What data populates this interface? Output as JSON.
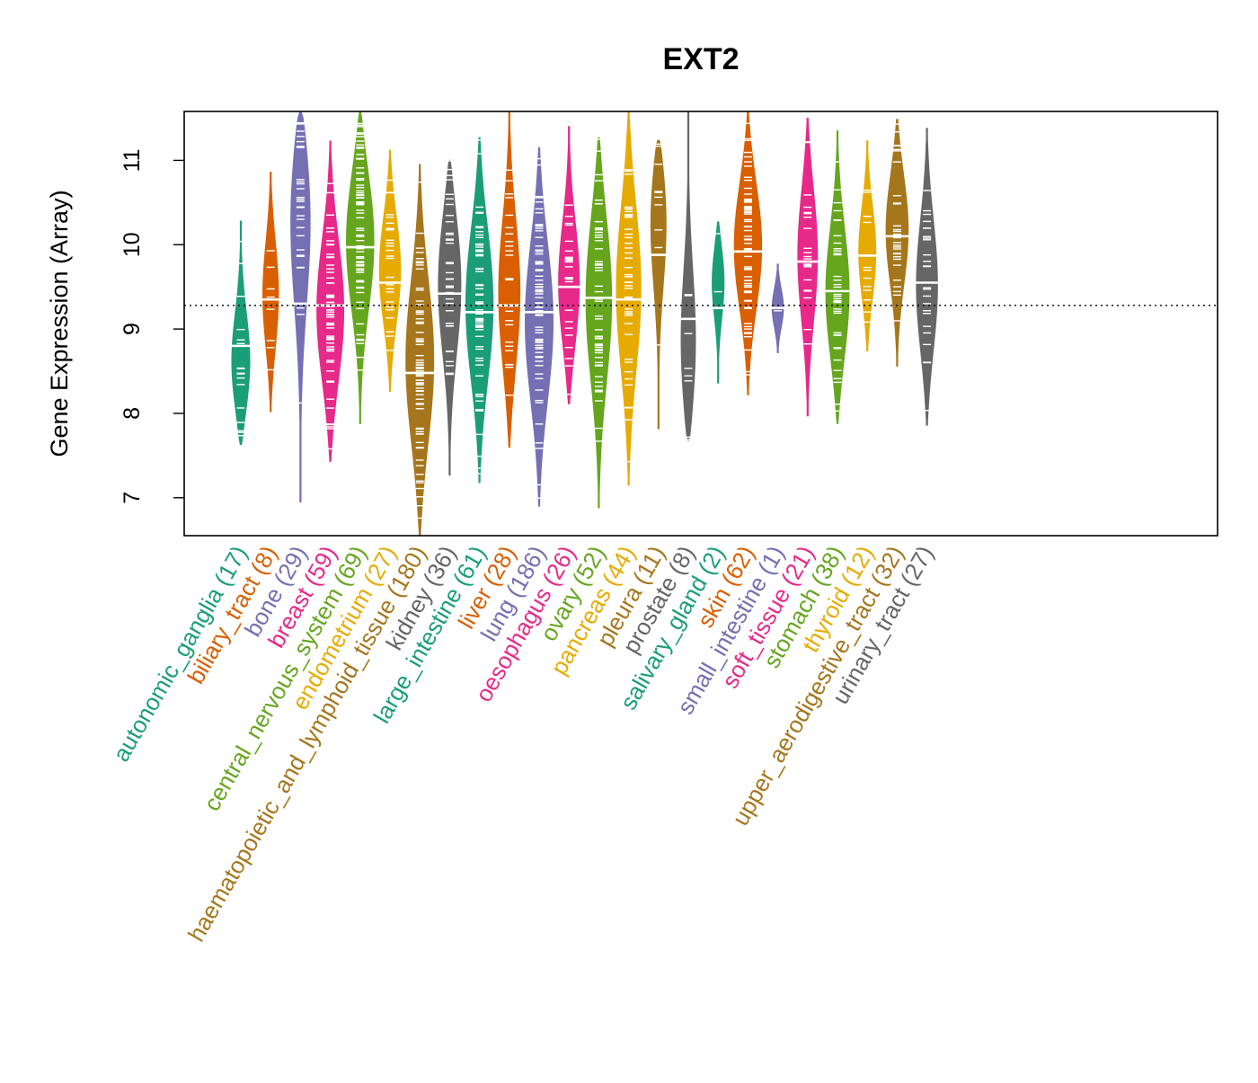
{
  "chart_data": {
    "type": "beanplot",
    "title": "EXT2",
    "xlabel": "",
    "ylabel": "Gene Expression (Array)",
    "ylim": [
      6.55,
      11.58
    ],
    "yticks": [
      7,
      8,
      9,
      10,
      11
    ],
    "reference_line": 9.28,
    "grid": false,
    "legend": "none",
    "categories": [
      {
        "name": "autonomic_ganglia",
        "n": 17,
        "label": "autonomic_ganglia (17)",
        "color": "#1b9e77",
        "min": 7.63,
        "max": 10.28,
        "mean": 8.8,
        "mode": 8.55
      },
      {
        "name": "biliary_tract",
        "n": 8,
        "label": "biliary_tract (8)",
        "color": "#d95f02",
        "min": 8.02,
        "max": 10.86,
        "mean": 9.35,
        "mode": 9.4
      },
      {
        "name": "bone",
        "n": 29,
        "label": "bone (29)",
        "color": "#7570b3",
        "min": 6.95,
        "max": 11.58,
        "mean": 9.3,
        "mode": 10.5
      },
      {
        "name": "breast",
        "n": 59,
        "label": "breast (59)",
        "color": "#e7298a",
        "min": 7.43,
        "max": 11.23,
        "mean": 9.28,
        "mode": 9.2
      },
      {
        "name": "central_nervous_system",
        "n": 69,
        "label": "central_nervous_system (69)",
        "color": "#66a61e",
        "min": 7.88,
        "max": 11.58,
        "mean": 9.97,
        "mode": 10.1
      },
      {
        "name": "endometrium",
        "n": 27,
        "label": "endometrium (27)",
        "color": "#e6ab02",
        "min": 8.26,
        "max": 11.12,
        "mean": 9.55,
        "mode": 9.7
      },
      {
        "name": "haematopoietic_and_lymphoid_tissue",
        "n": 180,
        "label": "haematopoietic_and_lymphoid_tissue (180)",
        "color": "#a6761d",
        "min": 6.55,
        "max": 10.95,
        "mean": 8.48,
        "mode": 8.6
      },
      {
        "name": "kidney",
        "n": 36,
        "label": "kidney (36)",
        "color": "#666666",
        "min": 7.27,
        "max": 11.0,
        "mean": 9.42,
        "mode": 9.6
      },
      {
        "name": "large_intestine",
        "n": 61,
        "label": "large_intestine (61)",
        "color": "#1b9e77",
        "min": 7.18,
        "max": 11.27,
        "mean": 9.2,
        "mode": 9.3
      },
      {
        "name": "liver",
        "n": 28,
        "label": "liver (28)",
        "color": "#d95f02",
        "min": 7.6,
        "max": 11.58,
        "mean": 9.28,
        "mode": 9.4
      },
      {
        "name": "lung",
        "n": 186,
        "label": "lung (186)",
        "color": "#7570b3",
        "min": 6.9,
        "max": 11.15,
        "mean": 9.2,
        "mode": 9.1
      },
      {
        "name": "oesophagus",
        "n": 26,
        "label": "oesophagus (26)",
        "color": "#e7298a",
        "min": 8.1,
        "max": 11.4,
        "mean": 9.5,
        "mode": 9.5
      },
      {
        "name": "ovary",
        "n": 52,
        "label": "ovary (52)",
        "color": "#66a61e",
        "min": 6.88,
        "max": 11.27,
        "mean": 9.37,
        "mode": 9.4
      },
      {
        "name": "pancreas",
        "n": 44,
        "label": "pancreas (44)",
        "color": "#e6ab02",
        "min": 7.15,
        "max": 11.58,
        "mean": 9.35,
        "mode": 9.5
      },
      {
        "name": "pleura",
        "n": 11,
        "label": "pleura (11)",
        "color": "#a6761d",
        "min": 7.82,
        "max": 11.25,
        "mean": 9.88,
        "mode": 10.4
      },
      {
        "name": "prostate",
        "n": 8,
        "label": "prostate (8)",
        "color": "#666666",
        "min": 7.68,
        "max": 11.58,
        "mean": 9.12,
        "mode": 8.7
      },
      {
        "name": "salivary_gland",
        "n": 2,
        "label": "salivary_gland (2)",
        "color": "#1b9e77",
        "min": 8.36,
        "max": 10.27,
        "mean": 9.25,
        "mode": 9.6
      },
      {
        "name": "skin",
        "n": 62,
        "label": "skin (62)",
        "color": "#d95f02",
        "min": 8.22,
        "max": 11.58,
        "mean": 9.92,
        "mode": 10.0
      },
      {
        "name": "small_intestine",
        "n": 1,
        "label": "small_intestine (1)",
        "color": "#7570b3",
        "min": 8.72,
        "max": 9.77,
        "mean": 9.25,
        "mode": 9.25
      },
      {
        "name": "soft_tissue",
        "n": 21,
        "label": "soft_tissue (21)",
        "color": "#e7298a",
        "min": 7.97,
        "max": 11.5,
        "mean": 9.8,
        "mode": 9.9
      },
      {
        "name": "stomach",
        "n": 38,
        "label": "stomach (38)",
        "color": "#66a61e",
        "min": 7.88,
        "max": 11.35,
        "mean": 9.45,
        "mode": 9.4
      },
      {
        "name": "thyroid",
        "n": 12,
        "label": "thyroid (12)",
        "color": "#e6ab02",
        "min": 8.74,
        "max": 11.23,
        "mean": 9.87,
        "mode": 9.9
      },
      {
        "name": "upper_aerodigestive_tract",
        "n": 32,
        "label": "upper_aerodigestive_tract (32)",
        "color": "#a6761d",
        "min": 8.56,
        "max": 11.5,
        "mean": 10.1,
        "mode": 10.2
      },
      {
        "name": "urinary_tract",
        "n": 27,
        "label": "urinary_tract (27)",
        "color": "#666666",
        "min": 7.86,
        "max": 11.38,
        "mean": 9.55,
        "mode": 9.5
      }
    ]
  }
}
